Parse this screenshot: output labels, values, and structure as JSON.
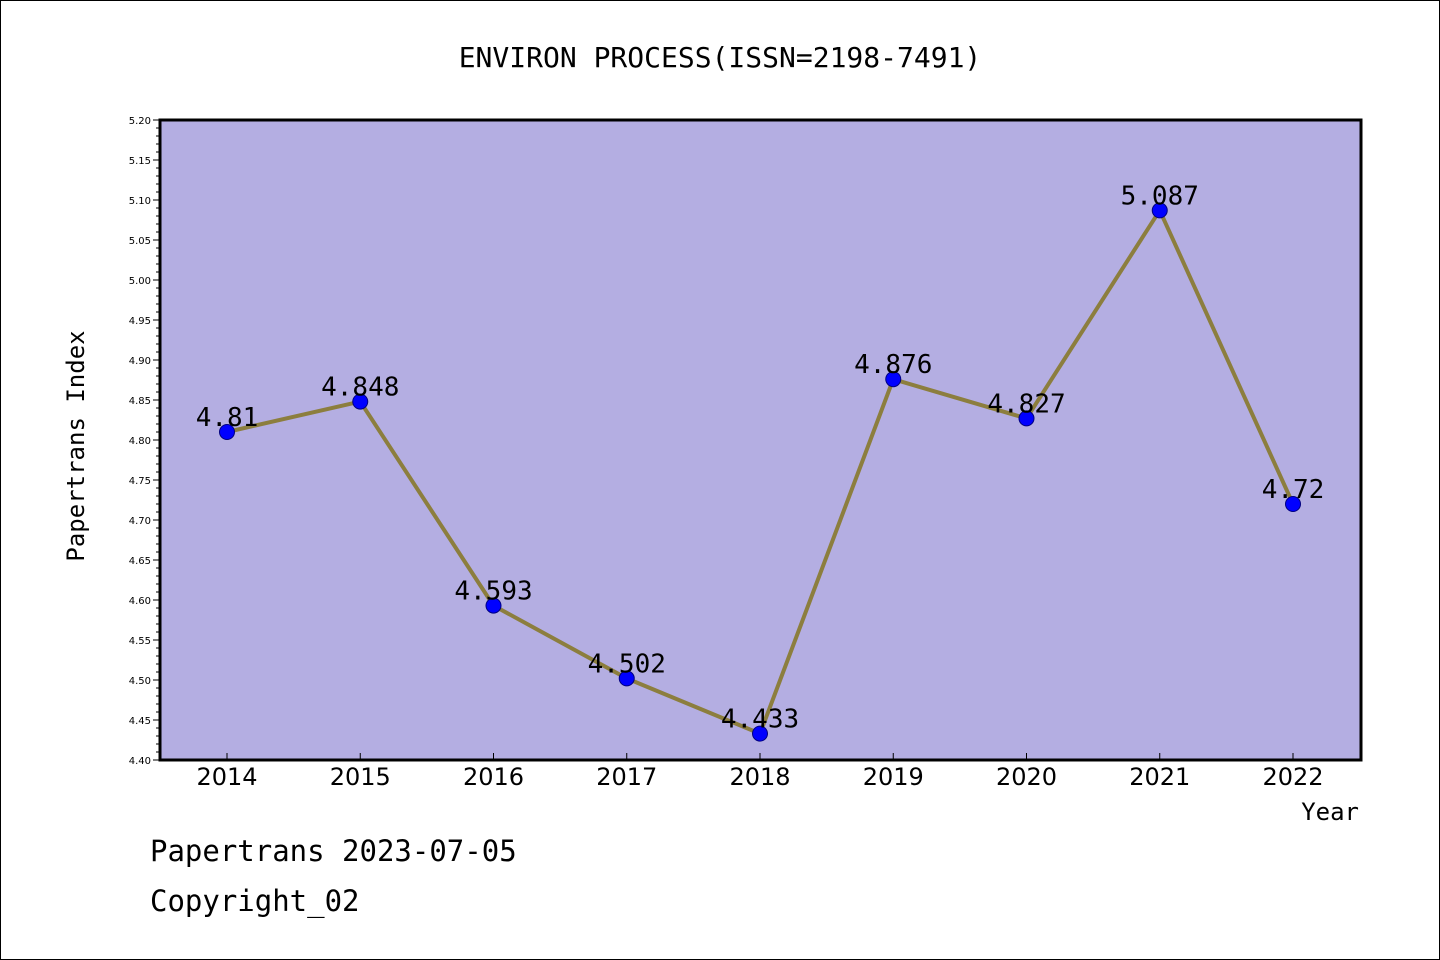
{
  "chart_data": {
    "type": "line",
    "title": "ENVIRON PROCESS(ISSN=2198-7491)",
    "xlabel": "Year",
    "ylabel": "Papertrans Index",
    "categories": [
      "2014",
      "2015",
      "2016",
      "2017",
      "2018",
      "2019",
      "2020",
      "2021",
      "2022"
    ],
    "values": [
      4.81,
      4.848,
      4.593,
      4.502,
      4.433,
      4.876,
      4.827,
      5.087,
      4.72
    ],
    "value_labels": [
      "4.81",
      "4.848",
      "4.593",
      "4.502",
      "4.433",
      "4.876",
      "4.827",
      "5.087",
      "4.72"
    ],
    "ylim": [
      4.4,
      5.2
    ],
    "yticks": [
      "4.40",
      "4.45",
      "4.50",
      "4.55",
      "4.60",
      "4.65",
      "4.70",
      "4.75",
      "4.80",
      "4.85",
      "4.90",
      "4.95",
      "5.00",
      "5.05",
      "5.10",
      "5.15",
      "5.20"
    ],
    "grid": false,
    "legend": "none",
    "colors": {
      "plot_background": "#b4aee2",
      "line": "#8c7e3e",
      "marker_fill": "#0000ff",
      "marker_edge": "#000080"
    }
  },
  "footer": {
    "line1": "Papertrans 2023-07-05",
    "line2": "Copyright_02"
  }
}
